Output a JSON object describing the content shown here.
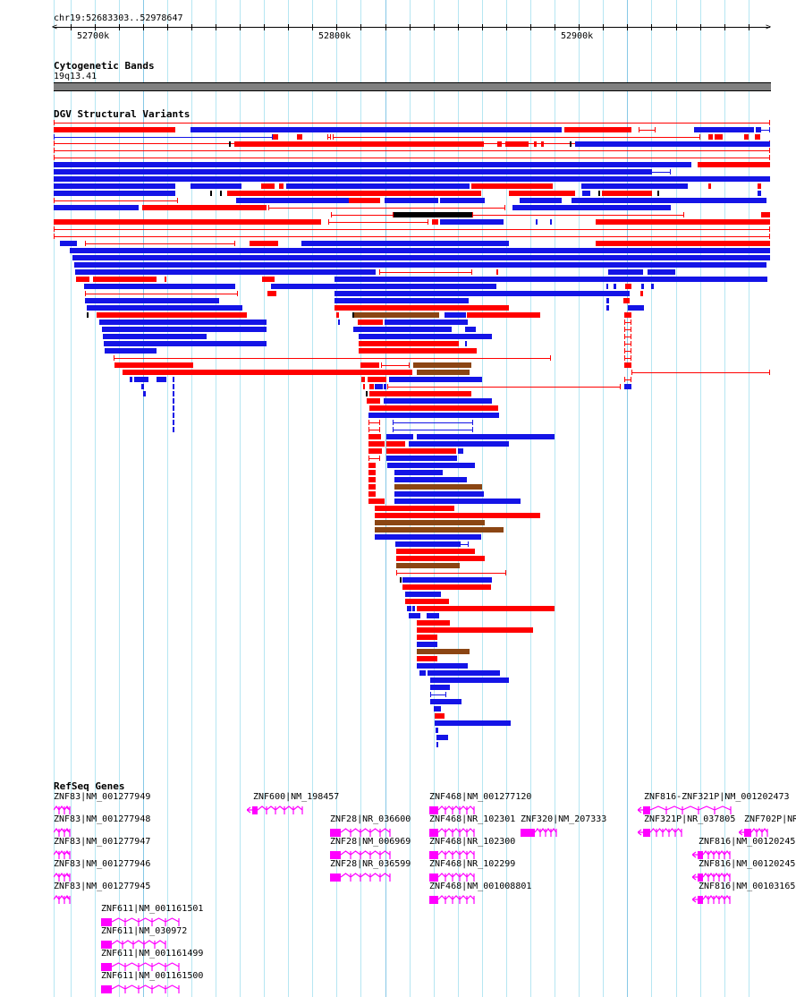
{
  "location": "chr19:52683303..52978647",
  "ruler": {
    "ticks": [
      "52700k",
      "52800k",
      "52900k"
    ]
  },
  "tracks": {
    "cytoband": {
      "title": "Cytogenetic Bands",
      "band": "19q13.41"
    },
    "dgv": {
      "title": "DGV Structural Variants"
    },
    "refseq": {
      "title": "RefSeq Genes"
    }
  },
  "colors": {
    "loss": "#ff0000",
    "gain": "#1414e6",
    "both": "#8b4513",
    "other": "#000000",
    "gene": "#ff00ff",
    "grid": "#b6e6f2"
  },
  "genes": [
    "ZNF83|NM_001277949",
    "ZNF83|NM_001277948",
    "ZNF83|NM_001277947",
    "ZNF83|NM_001277946",
    "ZNF83|NM_001277945",
    "ZNF600|NM_198457",
    "ZNF28|NR_036600",
    "ZNF28|NM_006969",
    "ZNF28|NR_036599",
    "ZNF468|NM_001277120",
    "ZNF468|NR_102301",
    "ZNF468|NR_102300",
    "ZNF468|NR_102299",
    "ZNF468|NM_001008801",
    "ZNF320|NM_207333",
    "ZNF816-ZNF321P|NM_001202473",
    "ZNF321P|NR_037805",
    "ZNF702P|NR",
    "ZNF816|NM_00120245",
    "ZNF816|NM_00120245",
    "ZNF816|NM_00103165",
    "ZNF611|NM_001161501",
    "ZNF611|NM_030972",
    "ZNF611|NM_001161499",
    "ZNF611|NM_001161500"
  ]
}
